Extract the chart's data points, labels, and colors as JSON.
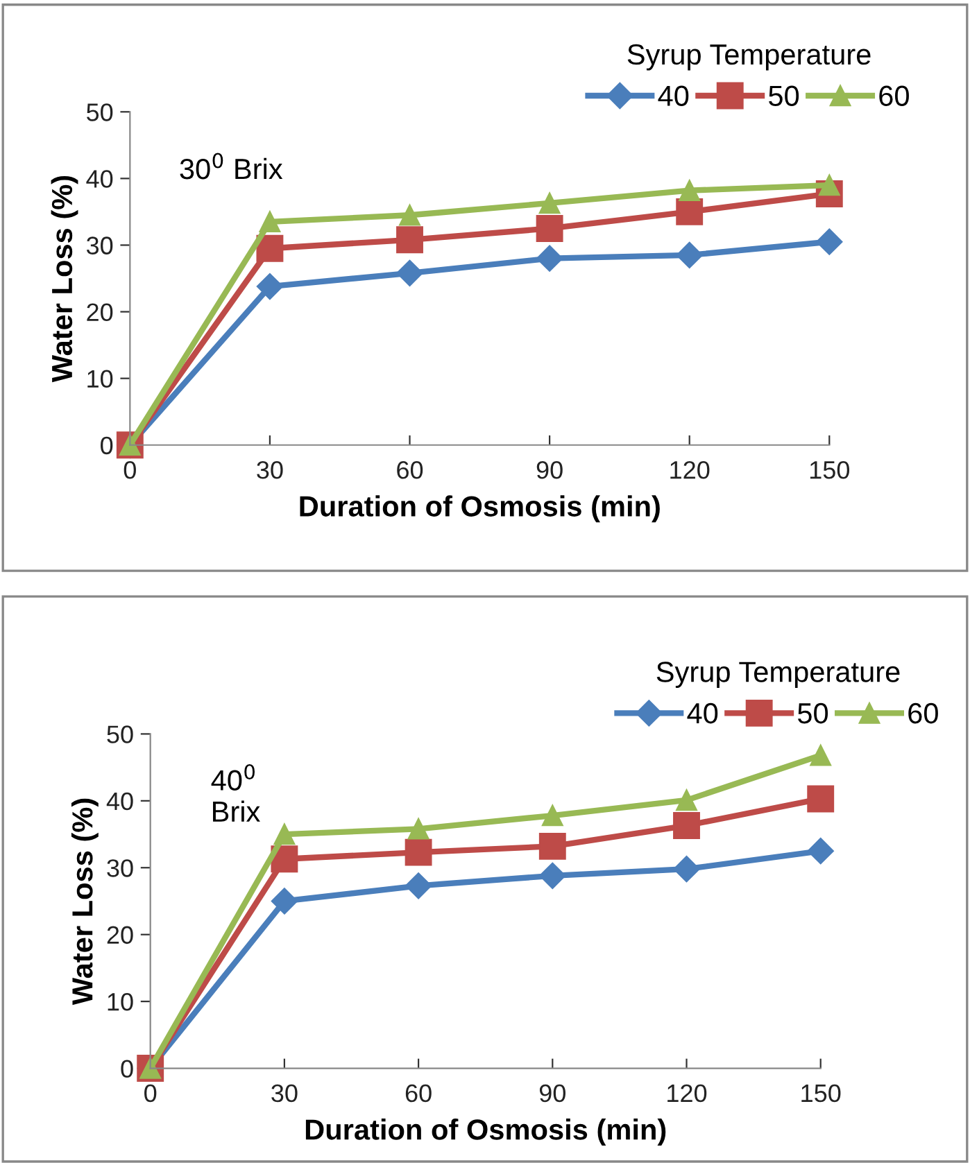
{
  "chart_data": [
    {
      "type": "line",
      "x": [
        0,
        30,
        60,
        90,
        120,
        150
      ],
      "xlabel": "Duration of Osmosis (min)",
      "ylabel": "Water Loss (%)",
      "legend_title": "Syrup Temperature",
      "legend": "top right",
      "grid": false,
      "xlim": [
        0,
        150
      ],
      "xticks": [
        0,
        30,
        60,
        90,
        120,
        150
      ],
      "ylim": [
        0,
        50
      ],
      "yticks": [
        0,
        10,
        20,
        30,
        40,
        50
      ],
      "annotations": [
        "30$^{0}$ Brix"
      ],
      "series": [
        {
          "name": "40",
          "color": "#4a7ebb",
          "marker": "diamond",
          "values": [
            0,
            23.8,
            25.8,
            28,
            28.5,
            30.5
          ]
        },
        {
          "name": "50",
          "color": "#be4b48",
          "marker": "square",
          "values": [
            0,
            29.5,
            30.8,
            32.5,
            35,
            37.7
          ]
        },
        {
          "name": "60",
          "color": "#98b954",
          "marker": "triangle",
          "values": [
            0,
            33.5,
            34.5,
            36.3,
            38.2,
            39
          ]
        }
      ]
    },
    {
      "type": "line",
      "x": [
        0,
        30,
        60,
        90,
        120,
        150
      ],
      "xlabel": "Duration of Osmosis (min)",
      "ylabel": "Water Loss (%)",
      "legend_title": "Syrup Temperature",
      "legend": "top right",
      "grid": false,
      "xlim": [
        0,
        150
      ],
      "xticks": [
        0,
        30,
        60,
        90,
        120,
        150
      ],
      "ylim": [
        0,
        50
      ],
      "yticks": [
        0,
        10,
        20,
        30,
        40,
        50
      ],
      "annotations": [
        "40$^{0}$\nBrix"
      ],
      "series": [
        {
          "name": "40",
          "color": "#4a7ebb",
          "marker": "diamond",
          "values": [
            0,
            25,
            27.3,
            28.8,
            29.8,
            32.5
          ]
        },
        {
          "name": "50",
          "color": "#be4b48",
          "marker": "square",
          "values": [
            0,
            31.3,
            32.3,
            33.2,
            36.3,
            40.3
          ]
        },
        {
          "name": "60",
          "color": "#98b954",
          "marker": "triangle",
          "values": [
            0,
            35,
            35.8,
            37.8,
            40.1,
            46.8
          ]
        }
      ]
    }
  ]
}
